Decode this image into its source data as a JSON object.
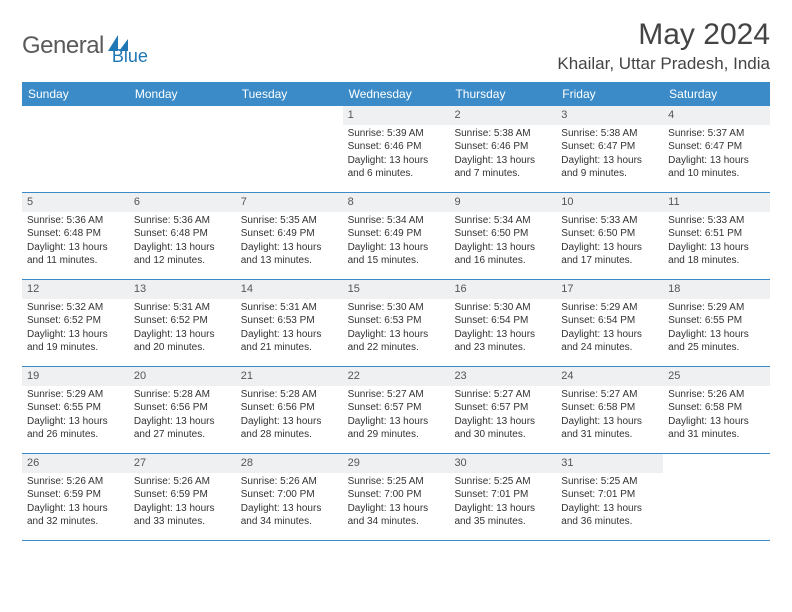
{
  "logo_text_1": "General",
  "logo_text_2": "Blue",
  "logo_color_gray": "#6a6a6a",
  "logo_color_blue": "#1f77b4",
  "title": "May 2024",
  "location": "Khailar, Uttar Pradesh, India",
  "header_bg": "#3b8bc8",
  "header_fg": "#ffffff",
  "dayheader_bg": "#eef0f2",
  "border_color": "#3b8bc8",
  "text_color": "#333333",
  "weekdays": [
    "Sunday",
    "Monday",
    "Tuesday",
    "Wednesday",
    "Thursday",
    "Friday",
    "Saturday"
  ],
  "weeks": [
    [
      {
        "n": "",
        "sr": "",
        "ss": "",
        "d1": "",
        "d2": ""
      },
      {
        "n": "",
        "sr": "",
        "ss": "",
        "d1": "",
        "d2": ""
      },
      {
        "n": "",
        "sr": "",
        "ss": "",
        "d1": "",
        "d2": ""
      },
      {
        "n": "1",
        "sr": "Sunrise: 5:39 AM",
        "ss": "Sunset: 6:46 PM",
        "d1": "Daylight: 13 hours",
        "d2": "and 6 minutes."
      },
      {
        "n": "2",
        "sr": "Sunrise: 5:38 AM",
        "ss": "Sunset: 6:46 PM",
        "d1": "Daylight: 13 hours",
        "d2": "and 7 minutes."
      },
      {
        "n": "3",
        "sr": "Sunrise: 5:38 AM",
        "ss": "Sunset: 6:47 PM",
        "d1": "Daylight: 13 hours",
        "d2": "and 9 minutes."
      },
      {
        "n": "4",
        "sr": "Sunrise: 5:37 AM",
        "ss": "Sunset: 6:47 PM",
        "d1": "Daylight: 13 hours",
        "d2": "and 10 minutes."
      }
    ],
    [
      {
        "n": "5",
        "sr": "Sunrise: 5:36 AM",
        "ss": "Sunset: 6:48 PM",
        "d1": "Daylight: 13 hours",
        "d2": "and 11 minutes."
      },
      {
        "n": "6",
        "sr": "Sunrise: 5:36 AM",
        "ss": "Sunset: 6:48 PM",
        "d1": "Daylight: 13 hours",
        "d2": "and 12 minutes."
      },
      {
        "n": "7",
        "sr": "Sunrise: 5:35 AM",
        "ss": "Sunset: 6:49 PM",
        "d1": "Daylight: 13 hours",
        "d2": "and 13 minutes."
      },
      {
        "n": "8",
        "sr": "Sunrise: 5:34 AM",
        "ss": "Sunset: 6:49 PM",
        "d1": "Daylight: 13 hours",
        "d2": "and 15 minutes."
      },
      {
        "n": "9",
        "sr": "Sunrise: 5:34 AM",
        "ss": "Sunset: 6:50 PM",
        "d1": "Daylight: 13 hours",
        "d2": "and 16 minutes."
      },
      {
        "n": "10",
        "sr": "Sunrise: 5:33 AM",
        "ss": "Sunset: 6:50 PM",
        "d1": "Daylight: 13 hours",
        "d2": "and 17 minutes."
      },
      {
        "n": "11",
        "sr": "Sunrise: 5:33 AM",
        "ss": "Sunset: 6:51 PM",
        "d1": "Daylight: 13 hours",
        "d2": "and 18 minutes."
      }
    ],
    [
      {
        "n": "12",
        "sr": "Sunrise: 5:32 AM",
        "ss": "Sunset: 6:52 PM",
        "d1": "Daylight: 13 hours",
        "d2": "and 19 minutes."
      },
      {
        "n": "13",
        "sr": "Sunrise: 5:31 AM",
        "ss": "Sunset: 6:52 PM",
        "d1": "Daylight: 13 hours",
        "d2": "and 20 minutes."
      },
      {
        "n": "14",
        "sr": "Sunrise: 5:31 AM",
        "ss": "Sunset: 6:53 PM",
        "d1": "Daylight: 13 hours",
        "d2": "and 21 minutes."
      },
      {
        "n": "15",
        "sr": "Sunrise: 5:30 AM",
        "ss": "Sunset: 6:53 PM",
        "d1": "Daylight: 13 hours",
        "d2": "and 22 minutes."
      },
      {
        "n": "16",
        "sr": "Sunrise: 5:30 AM",
        "ss": "Sunset: 6:54 PM",
        "d1": "Daylight: 13 hours",
        "d2": "and 23 minutes."
      },
      {
        "n": "17",
        "sr": "Sunrise: 5:29 AM",
        "ss": "Sunset: 6:54 PM",
        "d1": "Daylight: 13 hours",
        "d2": "and 24 minutes."
      },
      {
        "n": "18",
        "sr": "Sunrise: 5:29 AM",
        "ss": "Sunset: 6:55 PM",
        "d1": "Daylight: 13 hours",
        "d2": "and 25 minutes."
      }
    ],
    [
      {
        "n": "19",
        "sr": "Sunrise: 5:29 AM",
        "ss": "Sunset: 6:55 PM",
        "d1": "Daylight: 13 hours",
        "d2": "and 26 minutes."
      },
      {
        "n": "20",
        "sr": "Sunrise: 5:28 AM",
        "ss": "Sunset: 6:56 PM",
        "d1": "Daylight: 13 hours",
        "d2": "and 27 minutes."
      },
      {
        "n": "21",
        "sr": "Sunrise: 5:28 AM",
        "ss": "Sunset: 6:56 PM",
        "d1": "Daylight: 13 hours",
        "d2": "and 28 minutes."
      },
      {
        "n": "22",
        "sr": "Sunrise: 5:27 AM",
        "ss": "Sunset: 6:57 PM",
        "d1": "Daylight: 13 hours",
        "d2": "and 29 minutes."
      },
      {
        "n": "23",
        "sr": "Sunrise: 5:27 AM",
        "ss": "Sunset: 6:57 PM",
        "d1": "Daylight: 13 hours",
        "d2": "and 30 minutes."
      },
      {
        "n": "24",
        "sr": "Sunrise: 5:27 AM",
        "ss": "Sunset: 6:58 PM",
        "d1": "Daylight: 13 hours",
        "d2": "and 31 minutes."
      },
      {
        "n": "25",
        "sr": "Sunrise: 5:26 AM",
        "ss": "Sunset: 6:58 PM",
        "d1": "Daylight: 13 hours",
        "d2": "and 31 minutes."
      }
    ],
    [
      {
        "n": "26",
        "sr": "Sunrise: 5:26 AM",
        "ss": "Sunset: 6:59 PM",
        "d1": "Daylight: 13 hours",
        "d2": "and 32 minutes."
      },
      {
        "n": "27",
        "sr": "Sunrise: 5:26 AM",
        "ss": "Sunset: 6:59 PM",
        "d1": "Daylight: 13 hours",
        "d2": "and 33 minutes."
      },
      {
        "n": "28",
        "sr": "Sunrise: 5:26 AM",
        "ss": "Sunset: 7:00 PM",
        "d1": "Daylight: 13 hours",
        "d2": "and 34 minutes."
      },
      {
        "n": "29",
        "sr": "Sunrise: 5:25 AM",
        "ss": "Sunset: 7:00 PM",
        "d1": "Daylight: 13 hours",
        "d2": "and 34 minutes."
      },
      {
        "n": "30",
        "sr": "Sunrise: 5:25 AM",
        "ss": "Sunset: 7:01 PM",
        "d1": "Daylight: 13 hours",
        "d2": "and 35 minutes."
      },
      {
        "n": "31",
        "sr": "Sunrise: 5:25 AM",
        "ss": "Sunset: 7:01 PM",
        "d1": "Daylight: 13 hours",
        "d2": "and 36 minutes."
      },
      {
        "n": "",
        "sr": "",
        "ss": "",
        "d1": "",
        "d2": ""
      }
    ]
  ]
}
